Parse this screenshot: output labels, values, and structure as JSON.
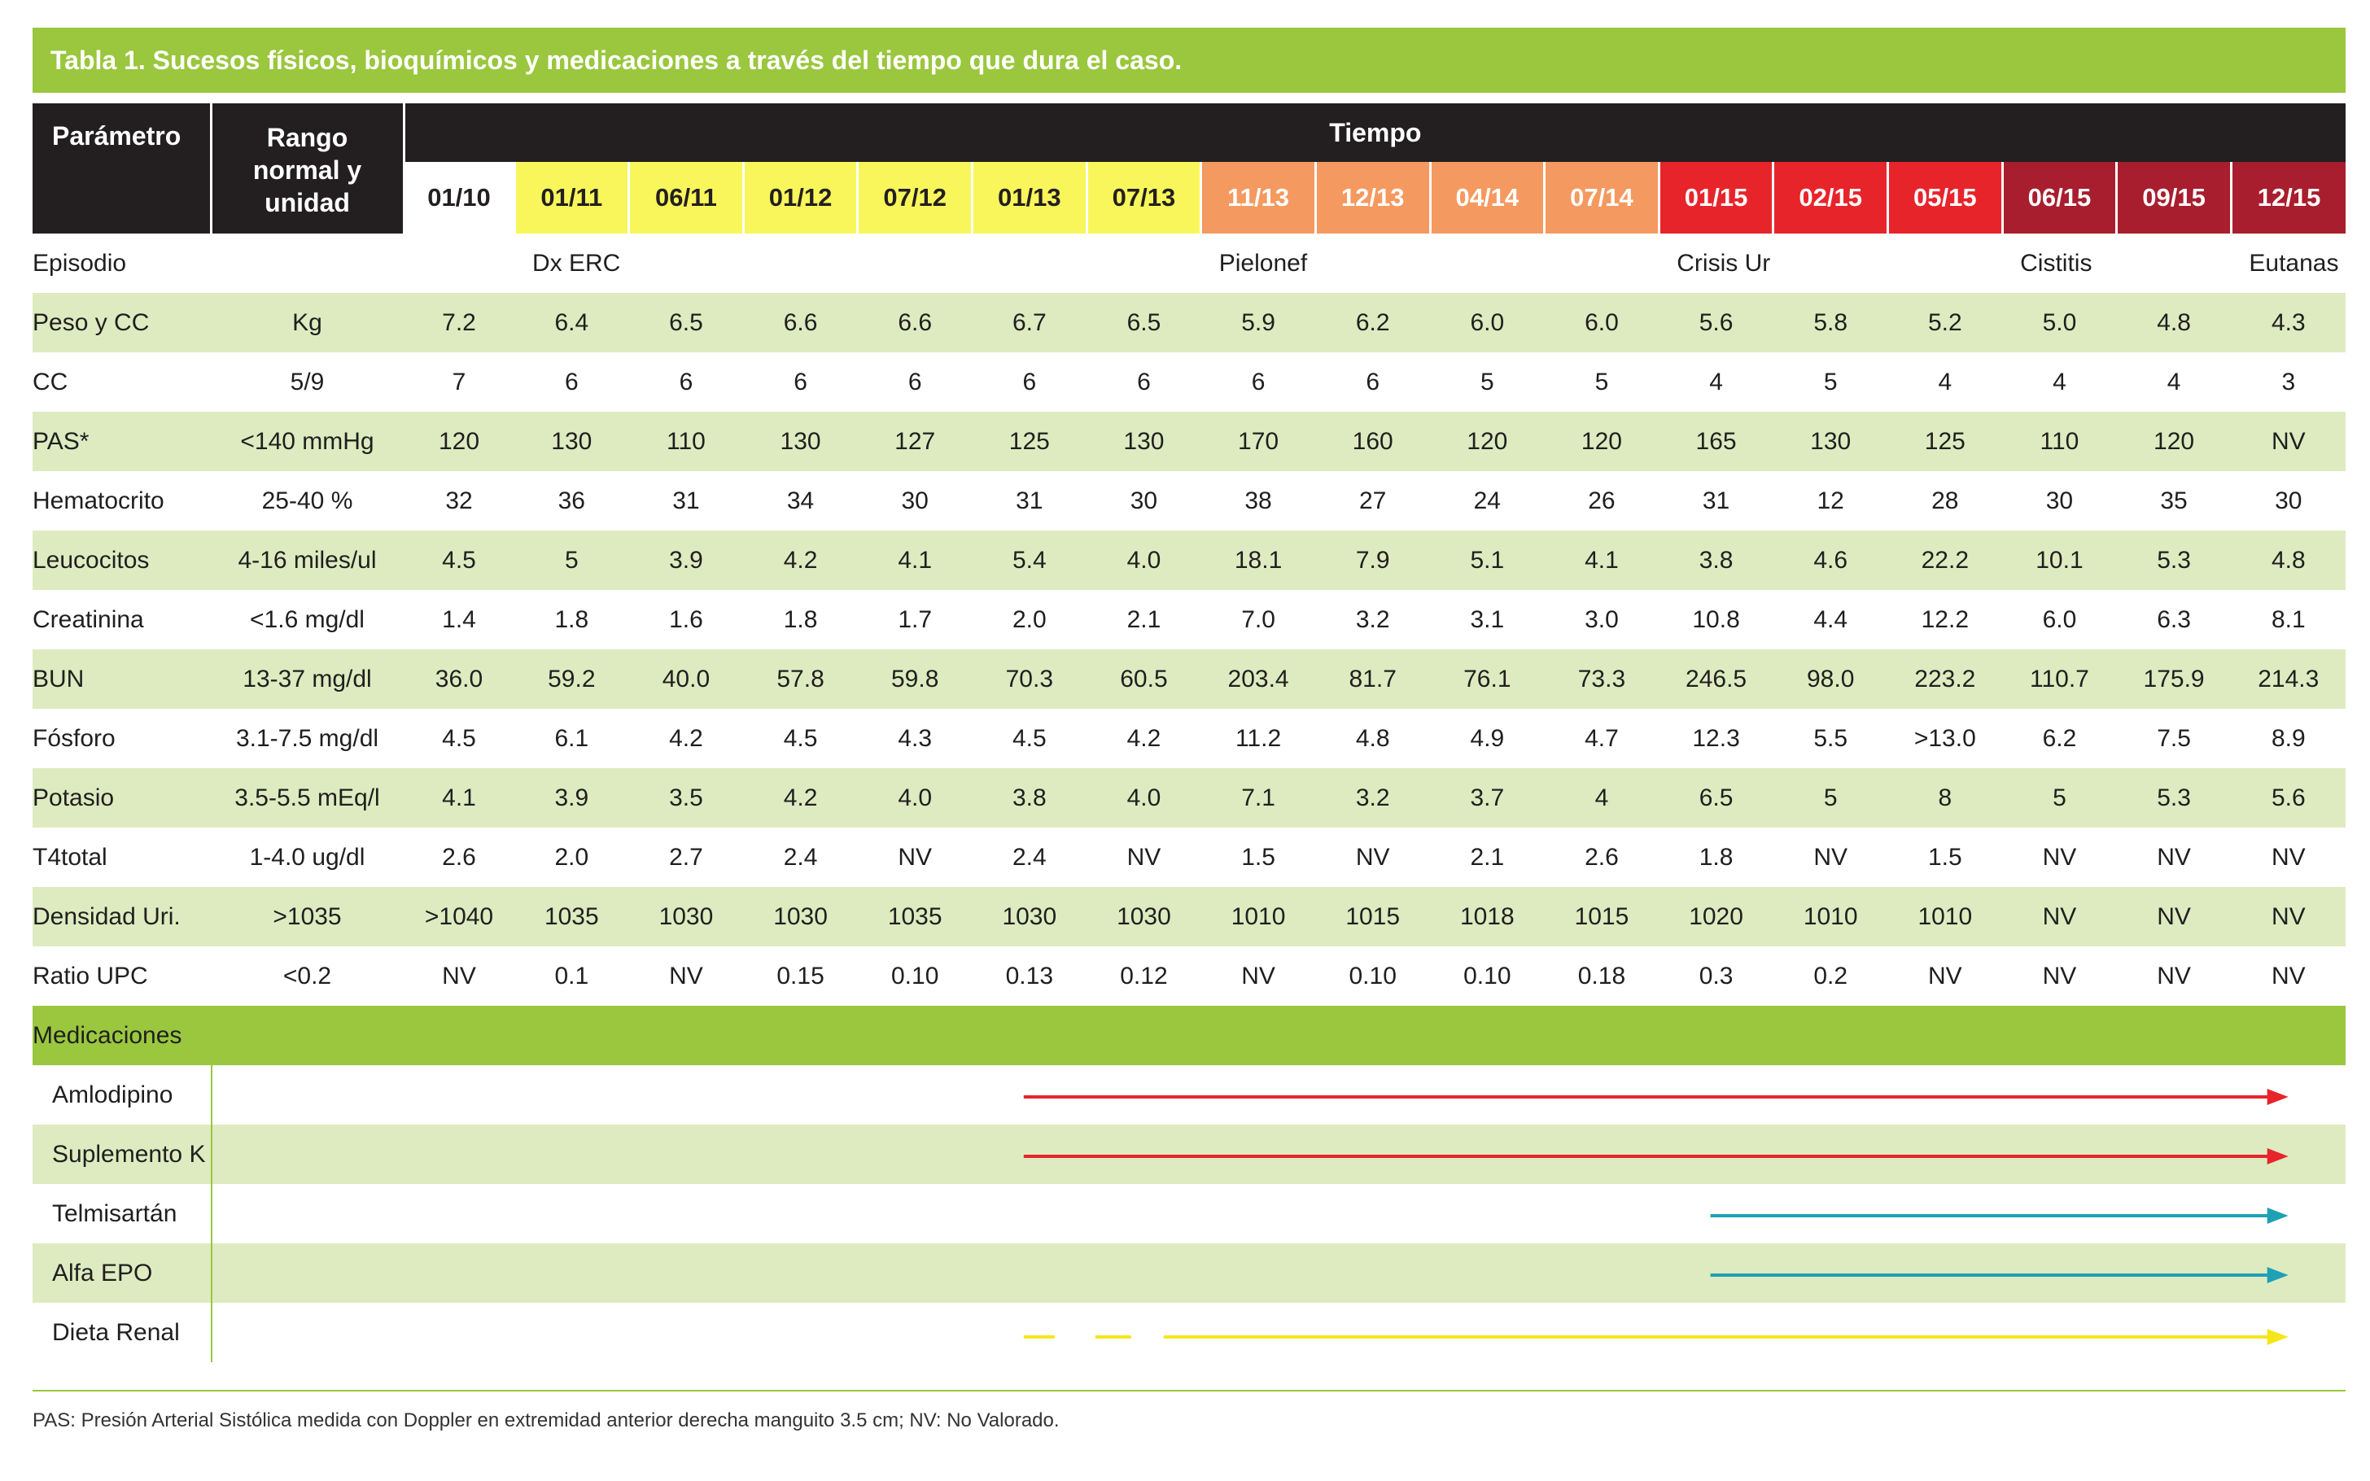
{
  "title": "Tabla 1. Sucesos físicos, bioquímicos y medicaciones a través del tiempo que dura el caso.",
  "header": {
    "param_label": "Parámetro",
    "range_label_lines": [
      "Rango",
      "normal y",
      "unidad"
    ],
    "tiempo_label": "Tiempo"
  },
  "periods": [
    {
      "label": "01/10",
      "bg": "#ffffff",
      "fg": "#231f20"
    },
    {
      "label": "01/11",
      "bg": "#f8f65a",
      "fg": "#231f20"
    },
    {
      "label": "06/11",
      "bg": "#f8f65a",
      "fg": "#231f20"
    },
    {
      "label": "01/12",
      "bg": "#f8f65a",
      "fg": "#231f20"
    },
    {
      "label": "07/12",
      "bg": "#f8f65a",
      "fg": "#231f20"
    },
    {
      "label": "01/13",
      "bg": "#f8f65a",
      "fg": "#231f20"
    },
    {
      "label": "07/13",
      "bg": "#f8f65a",
      "fg": "#231f20"
    },
    {
      "label": "11/13",
      "bg": "#f49a60",
      "fg": "#ffffff"
    },
    {
      "label": "12/13",
      "bg": "#f49a60",
      "fg": "#ffffff"
    },
    {
      "label": "04/14",
      "bg": "#f49a60",
      "fg": "#ffffff"
    },
    {
      "label": "07/14",
      "bg": "#f49a60",
      "fg": "#ffffff"
    },
    {
      "label": "01/15",
      "bg": "#e8242b",
      "fg": "#ffffff"
    },
    {
      "label": "02/15",
      "bg": "#e8242b",
      "fg": "#ffffff"
    },
    {
      "label": "05/15",
      "bg": "#e8242b",
      "fg": "#ffffff"
    },
    {
      "label": "06/15",
      "bg": "#a81e2e",
      "fg": "#ffffff"
    },
    {
      "label": "09/15",
      "bg": "#a81e2e",
      "fg": "#ffffff"
    },
    {
      "label": "12/15",
      "bg": "#a81e2e",
      "fg": "#ffffff"
    }
  ],
  "rows": [
    {
      "param": "Episodio",
      "range": "",
      "values": [
        "",
        "Dx ERC",
        "",
        "",
        "",
        "",
        "",
        "Pielonef",
        "",
        "",
        "",
        "Crisis Ur",
        "",
        "",
        "Cistitis",
        "",
        "Eutanas"
      ]
    },
    {
      "param": "Peso y CC",
      "range": "Kg",
      "values": [
        "7.2",
        "6.4",
        "6.5",
        "6.6",
        "6.6",
        "6.7",
        "6.5",
        "5.9",
        "6.2",
        "6.0",
        "6.0",
        "5.6",
        "5.8",
        "5.2",
        "5.0",
        "4.8",
        "4.3"
      ]
    },
    {
      "param": "CC",
      "range": "5/9",
      "values": [
        "7",
        "6",
        "6",
        "6",
        "6",
        "6",
        "6",
        "6",
        "6",
        "5",
        "5",
        "4",
        "5",
        "4",
        "4",
        "4",
        "3"
      ]
    },
    {
      "param": "PAS*",
      "range": "<140 mmHg",
      "values": [
        "120",
        "130",
        "110",
        "130",
        "127",
        "125",
        "130",
        "170",
        "160",
        "120",
        "120",
        "165",
        "130",
        "125",
        "110",
        "120",
        "NV"
      ]
    },
    {
      "param": "Hematocrito",
      "range": "25-40 %",
      "values": [
        "32",
        "36",
        "31",
        "34",
        "30",
        "31",
        "30",
        "38",
        "27",
        "24",
        "26",
        "31",
        "12",
        "28",
        "30",
        "35",
        "30"
      ]
    },
    {
      "param": "Leucocitos",
      "range": "4-16 miles/ul",
      "values": [
        "4.5",
        "5",
        "3.9",
        "4.2",
        "4.1",
        "5.4",
        "4.0",
        "18.1",
        "7.9",
        "5.1",
        "4.1",
        "3.8",
        "4.6",
        "22.2",
        "10.1",
        "5.3",
        "4.8"
      ]
    },
    {
      "param": "Creatinina",
      "range": "<1.6 mg/dl",
      "values": [
        "1.4",
        "1.8",
        "1.6",
        "1.8",
        "1.7",
        "2.0",
        "2.1",
        "7.0",
        "3.2",
        "3.1",
        "3.0",
        "10.8",
        "4.4",
        "12.2",
        "6.0",
        "6.3",
        "8.1"
      ]
    },
    {
      "param": "BUN",
      "range": "13-37 mg/dl",
      "values": [
        "36.0",
        "59.2",
        "40.0",
        "57.8",
        "59.8",
        "70.3",
        "60.5",
        "203.4",
        "81.7",
        "76.1",
        "73.3",
        "246.5",
        "98.0",
        "223.2",
        "110.7",
        "175.9",
        "214.3"
      ]
    },
    {
      "param": "Fósforo",
      "range": "3.1-7.5 mg/dl",
      "values": [
        "4.5",
        "6.1",
        "4.2",
        "4.5",
        "4.3",
        "4.5",
        "4.2",
        "11.2",
        "4.8",
        "4.9",
        "4.7",
        "12.3",
        "5.5",
        ">13.0",
        "6.2",
        "7.5",
        "8.9"
      ]
    },
    {
      "param": "Potasio",
      "range": "3.5-5.5 mEq/l",
      "values": [
        "4.1",
        "3.9",
        "3.5",
        "4.2",
        "4.0",
        "3.8",
        "4.0",
        "7.1",
        "3.2",
        "3.7",
        "4",
        "6.5",
        "5",
        "8",
        "5",
        "5.3",
        "5.6"
      ]
    },
    {
      "param": "T4total",
      "range": "1-4.0 ug/dl",
      "values": [
        "2.6",
        "2.0",
        "2.7",
        "2.4",
        "NV",
        "2.4",
        "NV",
        "1.5",
        "NV",
        "2.1",
        "2.6",
        "1.8",
        "NV",
        "1.5",
        "NV",
        "NV",
        "NV"
      ]
    },
    {
      "param": "Densidad Uri.",
      "range": ">1035",
      "values": [
        ">1040",
        "1035",
        "1030",
        "1030",
        "1035",
        "1030",
        "1030",
        "1010",
        "1015",
        "1018",
        "1015",
        "1020",
        "1010",
        "1010",
        "NV",
        "NV",
        "NV"
      ]
    },
    {
      "param": "Ratio UPC",
      "range": "<0.2",
      "values": [
        "NV",
        "0.1",
        "NV",
        "0.15",
        "0.10",
        "0.13",
        "0.12",
        "NV",
        "0.10",
        "0.10",
        "0.18",
        "0.3",
        "0.2",
        "NV",
        "NV",
        "NV",
        "NV"
      ]
    }
  ],
  "medications_label": "Medicaciones",
  "medications": [
    {
      "name": "Amlodipino",
      "start_period": "01/13",
      "end_period": "12/15",
      "color": "#e8242b",
      "style": "solid"
    },
    {
      "name": "Suplemento K",
      "start_period": "01/13",
      "end_period": "12/15",
      "color": "#e8242b",
      "style": "solid"
    },
    {
      "name": "Telmisartán",
      "start_period": "01/15",
      "end_period": "12/15",
      "color": "#1ea1b5",
      "style": "solid"
    },
    {
      "name": "Alfa EPO",
      "start_period": "01/15",
      "end_period": "12/15",
      "color": "#1ea1b5",
      "style": "solid"
    },
    {
      "name": "Dieta Renal",
      "start_period": "01/13",
      "end_period": "12/15",
      "color": "#f5e61c",
      "style": "dashed-start"
    }
  ],
  "footnote": "PAS: Presión Arterial Sistólica medida con Doppler en extremidad anterior derecha manguito 3.5 cm; NV: No Valorado."
}
